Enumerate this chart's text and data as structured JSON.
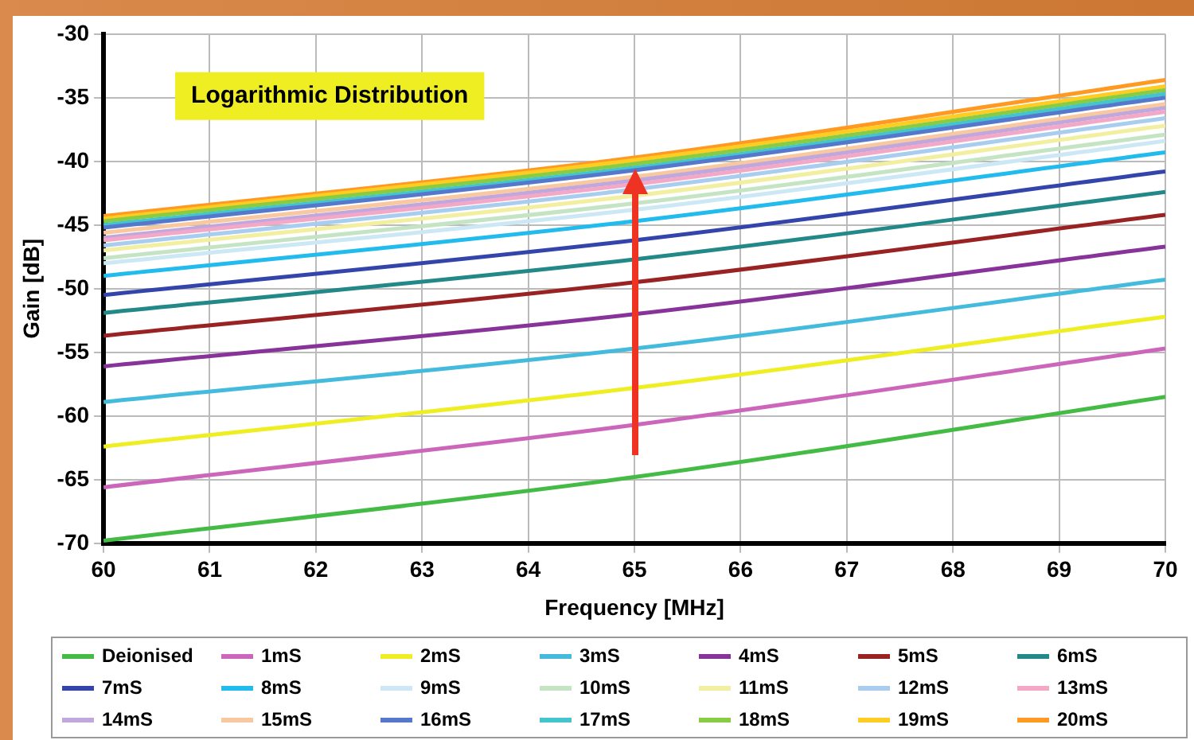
{
  "chart_data": {
    "type": "line",
    "xlabel": "Frequency [MHz]",
    "ylabel": "Gain [dB]",
    "annotations": [
      "Logarithmic Distribution"
    ],
    "x": [
      60,
      65,
      70
    ],
    "xlim": [
      60,
      70
    ],
    "xticks": [
      60,
      61,
      62,
      63,
      64,
      65,
      66,
      67,
      68,
      69,
      70
    ],
    "ylim": [
      -70,
      -30
    ],
    "yticks": [
      -70,
      -65,
      -60,
      -55,
      -50,
      -45,
      -40,
      -35,
      -30
    ],
    "grid": true,
    "legend": "bottom",
    "marker": "none",
    "line_style": "solid",
    "series": [
      {
        "name": "Deionised",
        "color": "#44bb44",
        "values": [
          -69.8,
          -64.8,
          -58.5
        ]
      },
      {
        "name": "1mS",
        "color": "#cc66bb",
        "values": [
          -65.6,
          -60.7,
          -54.7
        ]
      },
      {
        "name": "2mS",
        "color": "#eeee22",
        "values": [
          -62.4,
          -57.8,
          -52.2
        ]
      },
      {
        "name": "3mS",
        "color": "#44bbdd",
        "values": [
          -58.9,
          -54.7,
          -49.3
        ]
      },
      {
        "name": "4mS",
        "color": "#883399",
        "values": [
          -56.1,
          -52,
          -46.7
        ]
      },
      {
        "name": "5mS",
        "color": "#992222",
        "values": [
          -53.7,
          -49.5,
          -44.2
        ]
      },
      {
        "name": "6mS",
        "color": "#228888",
        "values": [
          -51.9,
          -47.7,
          -42.4
        ]
      },
      {
        "name": "7mS",
        "color": "#3344aa",
        "values": [
          -50.5,
          -46.2,
          -40.8
        ]
      },
      {
        "name": "8mS",
        "color": "#22bbee",
        "values": [
          -49,
          -44.7,
          -39.3
        ]
      },
      {
        "name": "9mS",
        "color": "#cce8f4",
        "values": [
          -48,
          -43.8,
          -38.4
        ]
      },
      {
        "name": "10mS",
        "color": "#c4e4c4",
        "values": [
          -47.6,
          -43.3,
          -37.9
        ]
      },
      {
        "name": "11mS",
        "color": "#f2f0a0",
        "values": [
          -47,
          -42.7,
          -37.2
        ]
      },
      {
        "name": "12mS",
        "color": "#a8cdee",
        "values": [
          -46.6,
          -42.2,
          -36.6
        ]
      },
      {
        "name": "13mS",
        "color": "#f4a8c8",
        "values": [
          -46.2,
          -41.8,
          -36.1
        ]
      },
      {
        "name": "14mS",
        "color": "#c0a8dd",
        "values": [
          -46,
          -41.5,
          -35.8
        ]
      },
      {
        "name": "15mS",
        "color": "#f8c8a0",
        "values": [
          -45.6,
          -41.2,
          -35.5
        ]
      },
      {
        "name": "16mS",
        "color": "#5577cc",
        "values": [
          -45.2,
          -40.7,
          -35
        ]
      },
      {
        "name": "17mS",
        "color": "#44c4cc",
        "values": [
          -45,
          -40.5,
          -34.7
        ]
      },
      {
        "name": "18mS",
        "color": "#88cc44",
        "values": [
          -44.7,
          -40.2,
          -34.4
        ]
      },
      {
        "name": "19mS",
        "color": "#ffcc22",
        "values": [
          -44.5,
          -39.9,
          -34.1
        ]
      },
      {
        "name": "20mS",
        "color": "#ff9922",
        "values": [
          -44.3,
          -39.7,
          -33.6
        ]
      }
    ]
  }
}
